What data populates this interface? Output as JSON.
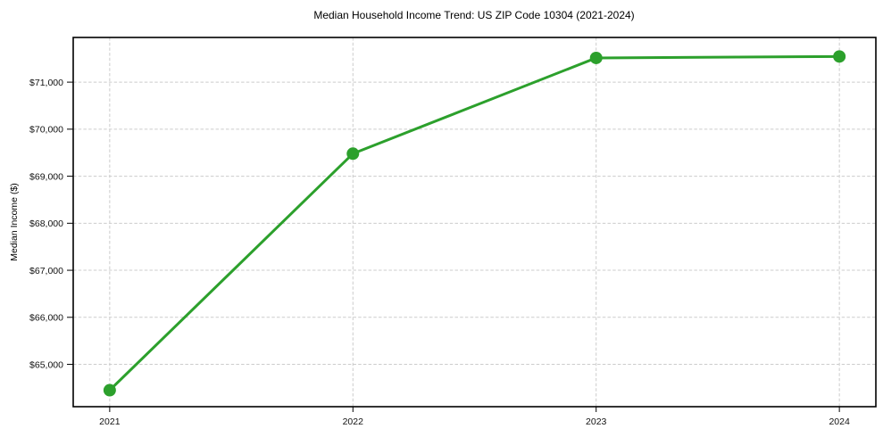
{
  "figure": {
    "background": "#ffffff"
  },
  "chart_data": {
    "type": "line",
    "title": "Median Household Income Trend: US ZIP Code 10304 (2021-2024)",
    "xlabel": "",
    "ylabel": "Median Income ($)",
    "x": [
      2021,
      2022,
      2023,
      2024
    ],
    "x_tick_labels": [
      "2021",
      "2022",
      "2023",
      "2024"
    ],
    "series": [
      {
        "name": "median-household-income",
        "values": [
          64450,
          69480,
          71515,
          71545
        ],
        "color": "#2ca02c",
        "line_width": 3,
        "marker": "circle",
        "marker_size": 7
      }
    ],
    "yticks": [
      65000,
      66000,
      67000,
      68000,
      69000,
      70000,
      71000
    ],
    "y_tick_labels": [
      "$65,000",
      "$66,000",
      "$67,000",
      "$68,000",
      "$69,000",
      "$70,000",
      "$71,000"
    ],
    "ylim": [
      64100,
      71950
    ],
    "xlim": [
      2020.85,
      2024.15
    ],
    "grid": true,
    "grid_style": "dashed",
    "grid_color": "#cccccc",
    "legend": "none"
  }
}
